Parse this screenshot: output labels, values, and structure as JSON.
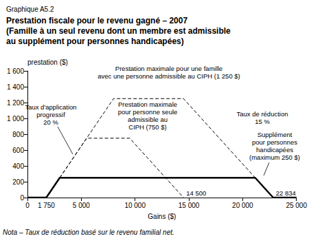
{
  "chart_data": {
    "type": "line",
    "figure_number": "Graphique A5.2",
    "title": "Prestation fiscale pour le revenu gagné – 2007",
    "subtitle": "(Famille à un seul revenu dont un membre est admissible\nau supplément pour personnes handicapées)",
    "x_label": "Gains ($)",
    "y_label": "prestation ($)",
    "x": [
      0,
      1750,
      3000,
      5500,
      8000,
      9500,
      14500,
      21167,
      22834,
      25000
    ],
    "series": [
      {
        "name": "Supplément\npour personnes\nhandicapées\n(maximum 250 $)",
        "color": "#000000",
        "line_style": "solid",
        "values": [
          0,
          0,
          250,
          250,
          250,
          250,
          250,
          250,
          0,
          0
        ]
      },
      {
        "name": "Prestation maximale\npour personne seule\nadmissible au\nCIPH (750 $)",
        "color": "#000000",
        "line_style": "dashed",
        "values": [
          null,
          null,
          250,
          750,
          750,
          750,
          0,
          null,
          null,
          null
        ]
      },
      {
        "name": "Prestation maximale pour une famille\navec une personne admissible au CIPH (1 250 $)",
        "color": "#000000",
        "line_style": "dashed",
        "values": [
          null,
          null,
          250,
          750,
          1250,
          1250,
          1250,
          250,
          null,
          null
        ]
      }
    ],
    "annotations": [
      {
        "text": "Taux d'application\nprogressif\n20 %"
      },
      {
        "text": "Taux de réduction\n15 %"
      }
    ],
    "x_annotations": [
      {
        "value": 1750,
        "label": "1 750"
      },
      {
        "value": 14500,
        "label": "14 500"
      },
      {
        "value": 22834,
        "label": "22 834"
      }
    ],
    "note": "Nota – Taux de réduction basé sur le revenu familial net.",
    "xlim": [
      0,
      25000
    ],
    "xticks": [
      0,
      {
        "value": 5000,
        "label": "5 000"
      },
      {
        "value": 10000,
        "label": "10 000"
      },
      {
        "value": 15000,
        "label": "15 000"
      },
      {
        "value": 20000,
        "label": "20 000"
      },
      {
        "value": 25000,
        "label": "25 000"
      }
    ],
    "ylim": [
      0,
      1600
    ],
    "yticks": [
      0,
      200,
      400,
      600,
      800,
      {
        "value": 1000,
        "label": "1 000"
      },
      {
        "value": 1200,
        "label": "1 200"
      },
      {
        "value": 1400,
        "label": "1 400"
      },
      {
        "value": 1600,
        "label": "1 600"
      }
    ],
    "grid": false
  }
}
